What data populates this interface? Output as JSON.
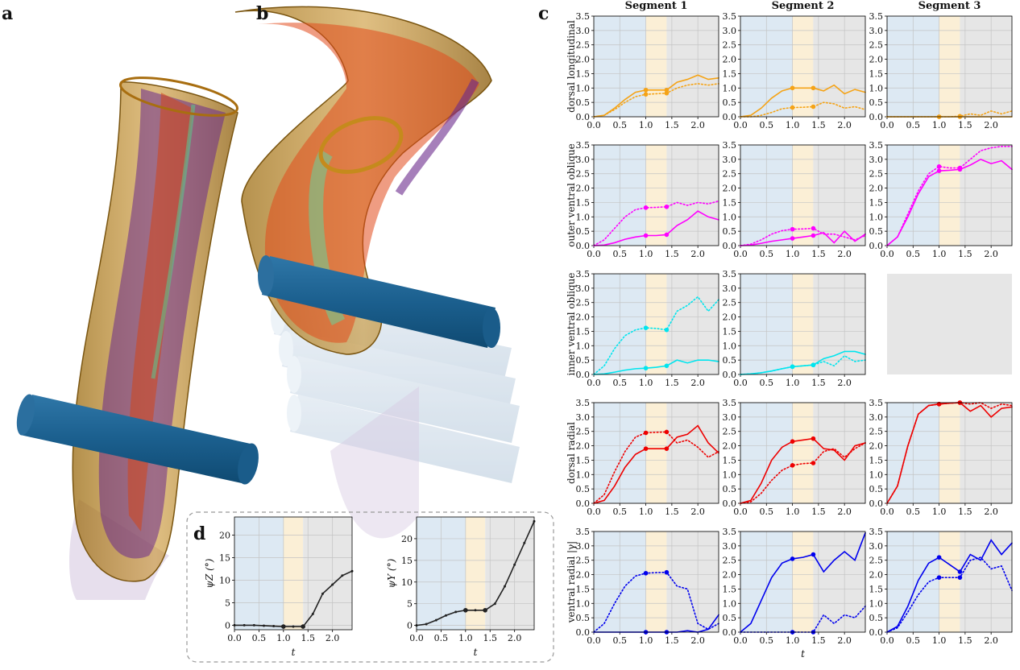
{
  "panel_labels": {
    "a": "a",
    "b": "b",
    "c": "c",
    "d": "d"
  },
  "panel_c": {
    "column_titles": [
      "Segment 1",
      "Segment 2",
      "Segment 3"
    ],
    "row_labels": [
      "dorsal longitudinal",
      "outer ventral oblique",
      "inner ventral oblique",
      "dorsal radial",
      "ventral radial |γ|"
    ],
    "xlabel": "t",
    "x": [
      0,
      0.2,
      0.4,
      0.6,
      0.8,
      1.0,
      1.2,
      1.4,
      1.6,
      1.8,
      2.0,
      2.2,
      2.4
    ],
    "xlim": [
      0,
      2.4
    ],
    "ylim": [
      0,
      3.5
    ],
    "xticks": [
      {
        "value": 0,
        "label": "0.0"
      },
      {
        "value": 0.5,
        "label": "0.5"
      },
      {
        "value": 1,
        "label": "1.0"
      },
      {
        "value": 1.5,
        "label": "1.5"
      },
      {
        "value": 2,
        "label": "2.0"
      }
    ],
    "yticks": [
      {
        "value": 0,
        "label": "0.0"
      },
      {
        "value": 0.5,
        "label": "0.5"
      },
      {
        "value": 1,
        "label": "1.0"
      },
      {
        "value": 1.5,
        "label": "1.5"
      },
      {
        "value": 2,
        "label": "2.0"
      },
      {
        "value": 2.5,
        "label": "2.5"
      },
      {
        "value": 3,
        "label": "3.0"
      },
      {
        "value": 3.5,
        "label": "3.5"
      }
    ],
    "grid": true,
    "spans": [
      {
        "start": 0,
        "end": 1,
        "color": "#dde9f3"
      },
      {
        "start": 1,
        "end": 1.4,
        "color": "#fbefd6"
      },
      {
        "start": 1.4,
        "end": 2.4,
        "color": "#e6e6e6"
      }
    ],
    "markers_at": [
      1.0,
      1.4
    ],
    "charts": [
      [
        {
          "type": "line",
          "series": [
            {
              "color": "#f5a316",
              "style": "solid",
              "values": [
                0,
                0.05,
                0.3,
                0.6,
                0.85,
                0.93,
                0.93,
                0.93,
                1.2,
                1.3,
                1.45,
                1.3,
                1.35
              ]
            },
            {
              "color": "#f5a316",
              "style": "dotted",
              "values": [
                0,
                0.05,
                0.25,
                0.5,
                0.7,
                0.78,
                0.8,
                0.82,
                1.0,
                1.1,
                1.15,
                1.1,
                1.15
              ]
            }
          ]
        },
        {
          "type": "line",
          "series": [
            {
              "color": "#f5a316",
              "style": "solid",
              "values": [
                0,
                0.05,
                0.3,
                0.65,
                0.9,
                1.0,
                1.0,
                1.0,
                0.9,
                1.1,
                0.8,
                0.95,
                0.85
              ]
            },
            {
              "color": "#f5a316",
              "style": "dotted",
              "values": [
                0,
                0,
                0.05,
                0.15,
                0.28,
                0.32,
                0.33,
                0.35,
                0.5,
                0.45,
                0.3,
                0.35,
                0.25
              ]
            }
          ]
        },
        {
          "type": "line",
          "series": [
            {
              "color": "#f5a316",
              "style": "solid",
              "values": [
                0,
                0,
                0,
                0,
                0,
                0,
                0,
                0,
                0,
                0,
                0,
                0,
                0
              ]
            },
            {
              "color": "#f5a316",
              "style": "dotted",
              "values": [
                0,
                0,
                0,
                0,
                0,
                0,
                0,
                0.02,
                0.1,
                0.05,
                0.2,
                0.1,
                0.2
              ]
            }
          ]
        }
      ],
      [
        {
          "type": "line",
          "series": [
            {
              "color": "#ff00ff",
              "style": "solid",
              "values": [
                0,
                0.02,
                0.1,
                0.22,
                0.3,
                0.35,
                0.35,
                0.38,
                0.7,
                0.9,
                1.2,
                1.0,
                0.9
              ]
            },
            {
              "color": "#ff00ff",
              "style": "dotted",
              "values": [
                0,
                0.2,
                0.6,
                1.0,
                1.25,
                1.32,
                1.33,
                1.35,
                1.5,
                1.4,
                1.5,
                1.45,
                1.55
              ]
            }
          ]
        },
        {
          "type": "line",
          "series": [
            {
              "color": "#ff00ff",
              "style": "solid",
              "values": [
                0,
                0.02,
                0.08,
                0.15,
                0.2,
                0.25,
                0.3,
                0.35,
                0.45,
                0.1,
                0.5,
                0.15,
                0.4
              ]
            },
            {
              "color": "#ff00ff",
              "style": "dotted",
              "values": [
                0,
                0.05,
                0.2,
                0.4,
                0.52,
                0.57,
                0.58,
                0.6,
                0.4,
                0.4,
                0.3,
                0.2,
                0.35
              ]
            }
          ]
        },
        {
          "type": "line",
          "series": [
            {
              "color": "#ff00ff",
              "style": "solid",
              "values": [
                0,
                0.3,
                1.0,
                1.8,
                2.4,
                2.6,
                2.62,
                2.65,
                2.8,
                3.0,
                2.85,
                2.95,
                2.65
              ]
            },
            {
              "color": "#ff00ff",
              "style": "dotted",
              "values": [
                0,
                0.3,
                1.1,
                1.9,
                2.5,
                2.75,
                2.7,
                2.7,
                3.0,
                3.3,
                3.4,
                3.45,
                3.45
              ]
            }
          ]
        }
      ],
      [
        {
          "type": "line",
          "series": [
            {
              "color": "#00e5ee",
              "style": "solid",
              "values": [
                0,
                0.02,
                0.08,
                0.15,
                0.2,
                0.22,
                0.25,
                0.3,
                0.5,
                0.4,
                0.5,
                0.5,
                0.45
              ]
            },
            {
              "color": "#00e5ee",
              "style": "dotted",
              "values": [
                0,
                0.3,
                0.9,
                1.35,
                1.55,
                1.62,
                1.6,
                1.55,
                2.2,
                2.4,
                2.7,
                2.2,
                2.6
              ]
            }
          ]
        },
        {
          "type": "line",
          "series": [
            {
              "color": "#00e5ee",
              "style": "solid",
              "values": [
                0,
                0.02,
                0.06,
                0.12,
                0.2,
                0.27,
                0.3,
                0.33,
                0.55,
                0.65,
                0.8,
                0.8,
                0.7
              ]
            },
            {
              "color": "#00e5ee",
              "style": "dotted",
              "values": [
                0,
                0.02,
                0.06,
                0.12,
                0.2,
                0.27,
                0.3,
                0.33,
                0.45,
                0.3,
                0.65,
                0.45,
                0.5
              ]
            }
          ]
        },
        null
      ],
      [
        {
          "type": "line",
          "series": [
            {
              "color": "#ee0000",
              "style": "solid",
              "values": [
                0,
                0.1,
                0.6,
                1.25,
                1.7,
                1.9,
                1.9,
                1.9,
                2.3,
                2.4,
                2.7,
                2.1,
                1.75
              ]
            },
            {
              "color": "#ee0000",
              "style": "dotted",
              "values": [
                0,
                0.3,
                1.1,
                1.8,
                2.3,
                2.45,
                2.47,
                2.48,
                2.1,
                2.2,
                1.95,
                1.6,
                1.8
              ]
            }
          ]
        },
        {
          "type": "line",
          "series": [
            {
              "color": "#ee0000",
              "style": "solid",
              "values": [
                0,
                0.1,
                0.7,
                1.5,
                1.95,
                2.15,
                2.2,
                2.25,
                1.9,
                1.85,
                1.5,
                2.0,
                2.1
              ]
            },
            {
              "color": "#ee0000",
              "style": "dotted",
              "values": [
                0,
                0.05,
                0.35,
                0.8,
                1.15,
                1.32,
                1.38,
                1.4,
                1.8,
                1.9,
                1.6,
                1.9,
                2.1
              ]
            }
          ]
        },
        {
          "type": "line",
          "series": [
            {
              "color": "#ee0000",
              "style": "solid",
              "values": [
                0,
                0.6,
                2.0,
                3.1,
                3.4,
                3.45,
                3.48,
                3.5,
                3.2,
                3.4,
                3.0,
                3.3,
                3.35
              ]
            },
            {
              "color": "#ee0000",
              "style": "dotted",
              "values": [
                0,
                0.6,
                2.0,
                3.1,
                3.4,
                3.45,
                3.48,
                3.5,
                3.45,
                3.5,
                3.3,
                3.45,
                3.4
              ]
            }
          ]
        }
      ],
      [
        {
          "type": "line",
          "series": [
            {
              "color": "#0000ee",
              "style": "solid",
              "values": [
                0,
                0,
                0,
                0,
                0,
                0,
                0,
                0,
                0,
                0.05,
                0,
                0.1,
                0.6
              ]
            },
            {
              "color": "#0000ee",
              "style": "dotted",
              "values": [
                0,
                0.3,
                1.0,
                1.6,
                1.95,
                2.05,
                2.07,
                2.08,
                1.6,
                1.5,
                0.3,
                0.1,
                0.3
              ]
            }
          ]
        },
        {
          "type": "line",
          "series": [
            {
              "color": "#0000ee",
              "style": "solid",
              "values": [
                0,
                0.3,
                1.1,
                1.9,
                2.4,
                2.55,
                2.6,
                2.7,
                2.1,
                2.5,
                2.8,
                2.5,
                3.45
              ]
            },
            {
              "color": "#0000ee",
              "style": "dotted",
              "values": [
                0,
                0,
                0,
                0,
                0,
                0,
                0,
                0,
                0.6,
                0.3,
                0.6,
                0.5,
                0.9
              ]
            }
          ]
        },
        {
          "type": "line",
          "series": [
            {
              "color": "#0000ee",
              "style": "solid",
              "values": [
                0,
                0.2,
                0.9,
                1.8,
                2.4,
                2.6,
                2.35,
                2.1,
                2.7,
                2.5,
                3.2,
                2.7,
                3.1
              ]
            },
            {
              "color": "#0000ee",
              "style": "dotted",
              "values": [
                0,
                0.15,
                0.7,
                1.3,
                1.75,
                1.9,
                1.9,
                1.9,
                2.5,
                2.6,
                2.2,
                2.3,
                1.45
              ]
            }
          ]
        }
      ]
    ]
  },
  "panel_d": {
    "x": [
      0,
      0.2,
      0.4,
      0.6,
      0.8,
      1.0,
      1.2,
      1.4,
      1.6,
      1.8,
      2.0,
      2.2,
      2.4
    ],
    "xlim": [
      0,
      2.4
    ],
    "xticks": [
      {
        "value": 0,
        "label": "0.0"
      },
      {
        "value": 0.5,
        "label": "0.5"
      },
      {
        "value": 1,
        "label": "1.0"
      },
      {
        "value": 1.5,
        "label": "1.5"
      },
      {
        "value": 2,
        "label": "2.0"
      }
    ],
    "grid": true,
    "spans": [
      {
        "start": 0,
        "end": 1,
        "color": "#dde9f3"
      },
      {
        "start": 1,
        "end": 1.4,
        "color": "#fbefd6"
      },
      {
        "start": 1.4,
        "end": 2.4,
        "color": "#e6e6e6"
      }
    ],
    "markers_at": [
      1.0,
      1.4
    ],
    "charts": [
      {
        "type": "line",
        "ylabel": "ψZ (°)",
        "xlabel": "t",
        "ylim": [
          -1,
          24
        ],
        "yticks": [
          0,
          5,
          10,
          15,
          20
        ],
        "point_markers": true,
        "series": [
          {
            "color": "#222222",
            "style": "solid",
            "values": [
              0,
              0,
              0,
              -0.1,
              -0.2,
              -0.3,
              -0.3,
              -0.3,
              2.5,
              7,
              9,
              11,
              12
            ]
          }
        ]
      },
      {
        "type": "line",
        "ylabel": "ψY (°)",
        "xlabel": "t",
        "ylim": [
          -1,
          25
        ],
        "yticks": [
          0,
          5,
          10,
          15,
          20
        ],
        "point_markers": true,
        "series": [
          {
            "color": "#222222",
            "style": "solid",
            "values": [
              0,
              0.3,
              1.2,
              2.3,
              3.1,
              3.5,
              3.5,
              3.5,
              5,
              9,
              14,
              19,
              24
            ]
          }
        ]
      }
    ]
  }
}
